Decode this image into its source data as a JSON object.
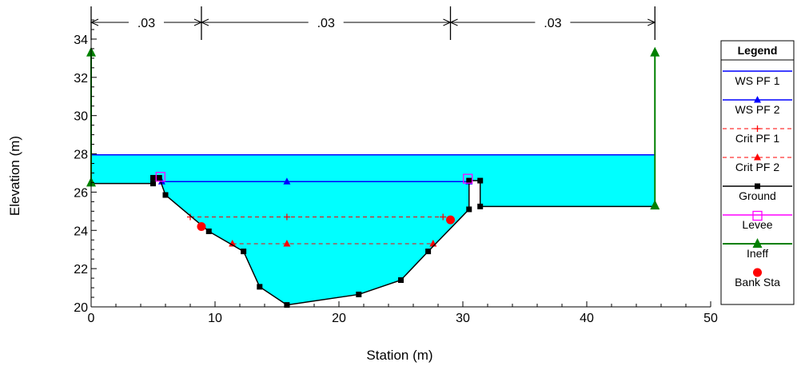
{
  "chart_data": {
    "type": "line",
    "xlabel": "Station (m)",
    "ylabel": "Elevation (m)",
    "xlim": [
      0,
      50
    ],
    "ylim": [
      20,
      35
    ],
    "x_ticks": [
      0,
      10,
      20,
      30,
      40,
      50
    ],
    "y_ticks": [
      20,
      22,
      24,
      26,
      28,
      30,
      32,
      34
    ],
    "grid": false,
    "legend_position": "right",
    "legend_title": "Legend",
    "colors": {
      "ws": "#0000ff",
      "crit": "#ff0000",
      "ground": "#000000",
      "levee": "#ff00ff",
      "ineff": "#008000",
      "bank": "#ff0000",
      "water_fill": "#00ffff"
    },
    "manning_n": [
      {
        "label": ".03",
        "from": 0,
        "to": 8.9
      },
      {
        "label": ".03",
        "from": 8.9,
        "to": 29.0
      },
      {
        "label": ".03",
        "from": 29.0,
        "to": 45.5
      }
    ],
    "series": [
      {
        "name": "WS PF 1",
        "style": "solid-line",
        "color": "#0000ff",
        "x": [
          0,
          45.5
        ],
        "y": [
          27.95,
          27.95
        ]
      },
      {
        "name": "WS PF 2",
        "style": "solid-line-triangle",
        "color": "#0000ff",
        "x": [
          5.7,
          15.8,
          30.5
        ],
        "y": [
          26.55,
          26.55,
          26.55
        ]
      },
      {
        "name": "Crit PF 1",
        "style": "dashed-line-plus",
        "color": "#ff0000",
        "x": [
          8.0,
          15.8,
          28.4
        ],
        "y": [
          24.7,
          24.7,
          24.7
        ]
      },
      {
        "name": "Crit PF 2",
        "style": "dashed-line-triangle",
        "color": "#ff0000",
        "x": [
          11.4,
          15.8,
          27.6
        ],
        "y": [
          23.3,
          23.3,
          23.3
        ]
      },
      {
        "name": "Ground",
        "style": "solid-line-square",
        "color": "#000000",
        "x": [
          0,
          5.0,
          5.0,
          5.5,
          6.0,
          9.5,
          12.3,
          13.6,
          15.8,
          21.6,
          25.0,
          27.2,
          30.5,
          30.5,
          31.4,
          31.4,
          45.5
        ],
        "y": [
          26.45,
          26.45,
          26.75,
          26.75,
          25.85,
          23.95,
          22.9,
          21.05,
          20.1,
          20.65,
          21.4,
          22.9,
          25.1,
          26.6,
          26.6,
          25.25,
          25.25
        ]
      },
      {
        "name": "Levee",
        "style": "square-open",
        "color": "#ff00ff",
        "x": [
          5.6,
          30.4
        ],
        "y": [
          26.8,
          26.7
        ]
      },
      {
        "name": "Ineff",
        "style": "vertical-line-triangle",
        "color": "#008000",
        "x": [
          0,
          45.5
        ],
        "y_bottom": [
          26.5,
          25.3
        ],
        "y_top": [
          33.3,
          33.3
        ]
      },
      {
        "name": "Bank Sta",
        "style": "filled-circle",
        "color": "#ff0000",
        "x": [
          8.9,
          29.0
        ],
        "y": [
          24.2,
          24.55
        ]
      }
    ]
  }
}
